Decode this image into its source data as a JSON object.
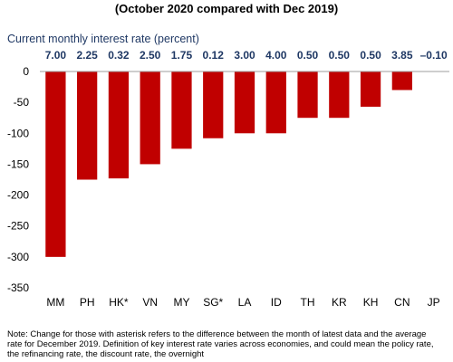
{
  "chart_data": {
    "type": "bar",
    "title": "(October 2020 compared with Dec 2019)",
    "subtitle": "Current monthly interest rate (percent)",
    "categories": [
      "MM",
      "PH",
      "HK*",
      "VN",
      "MY",
      "SG*",
      "LA",
      "ID",
      "TH",
      "KR",
      "KH",
      "CN",
      "JP"
    ],
    "current_rates": [
      "7.00",
      "2.25",
      "0.32",
      "2.50",
      "1.75",
      "0.12",
      "3.00",
      "4.00",
      "0.50",
      "0.50",
      "0.50",
      "3.85",
      "–0.10"
    ],
    "values": [
      -300,
      -175,
      -173,
      -150,
      -125,
      -108,
      -100,
      -100,
      -75,
      -75,
      -57,
      -30,
      0
    ],
    "ylim": [
      -350,
      0
    ],
    "yticks": [
      0,
      -50,
      -100,
      -150,
      -200,
      -250,
      -300,
      -350
    ],
    "bar_color": "#c00000",
    "rate_label_color": "#1f3864",
    "grid": false,
    "note": "Note: Change for those with asterisk refers to the difference between the month of latest data and the average rate for December 2019. Definition of key interest rate varies across economies, and could mean the policy rate, the refinancing rate, the discount rate, the overnight"
  }
}
